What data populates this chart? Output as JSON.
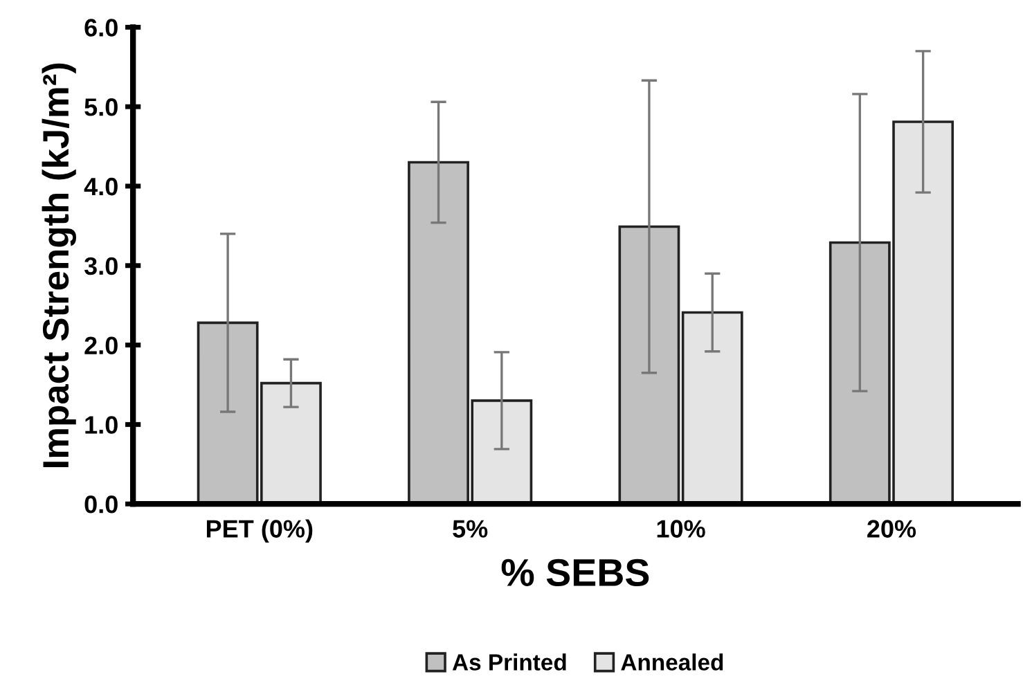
{
  "chart_data": {
    "type": "bar",
    "xlabel": "% SEBS",
    "ylabel": "Impact Strength (kJ/m²)",
    "categories": [
      "PET (0%)",
      "5%",
      "10%",
      "20%"
    ],
    "series": [
      {
        "name": "As Printed",
        "color": "#c0c0c0",
        "values": [
          2.28,
          4.3,
          3.49,
          3.29
        ],
        "errors": [
          1.12,
          0.76,
          1.84,
          1.87
        ]
      },
      {
        "name": "Annealed",
        "color": "#e4e4e4",
        "values": [
          1.52,
          1.3,
          2.41,
          4.81
        ],
        "errors": [
          0.3,
          0.61,
          0.49,
          0.89
        ]
      }
    ],
    "ylim": [
      0,
      6
    ],
    "yticks": [
      {
        "value": 0,
        "label": "0.0"
      },
      {
        "value": 1,
        "label": "1.0"
      },
      {
        "value": 2,
        "label": "2.0"
      },
      {
        "value": 3,
        "label": "3.0"
      },
      {
        "value": 4,
        "label": "4.0"
      },
      {
        "value": 5,
        "label": "5.0"
      },
      {
        "value": 6,
        "label": "6.0"
      }
    ],
    "grid": false,
    "legend": "bottom"
  }
}
